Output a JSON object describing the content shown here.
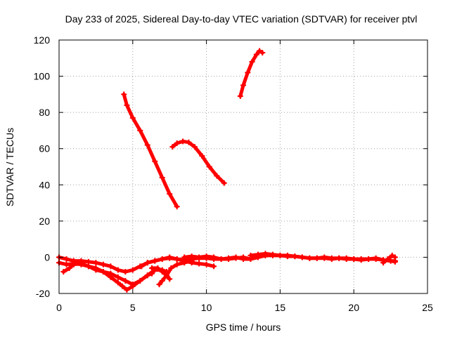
{
  "chart_data": {
    "type": "line",
    "title": "Day 233 of 2025, Sidereal Day-to-day VTEC variation (SDTVAR) for receiver ptvl",
    "xlabel": "GPS time / hours",
    "ylabel": "SDTVAR / TECUs",
    "xlim": [
      0,
      25
    ],
    "ylim": [
      -20,
      120
    ],
    "xticks": [
      0,
      5,
      10,
      15,
      20,
      25
    ],
    "yticks": [
      -20,
      0,
      20,
      40,
      60,
      80,
      100,
      120
    ],
    "grid": true,
    "legend": "none",
    "color": "#ff0000",
    "series": [
      {
        "x": [
          4.4,
          4.6,
          5.0,
          5.5,
          6.0,
          6.5,
          7.0,
          7.5,
          8.0
        ],
        "y": [
          90,
          84,
          77,
          70,
          62,
          53,
          44,
          35,
          28
        ]
      },
      {
        "x": [
          7.7,
          8.0,
          8.4,
          8.8,
          9.2,
          9.7,
          10.2,
          10.7,
          11.2
        ],
        "y": [
          61,
          63,
          64,
          63.5,
          61,
          56,
          50,
          45,
          41
        ]
      },
      {
        "x": [
          12.3,
          12.5,
          12.8,
          13.1,
          13.4,
          13.6,
          13.8
        ],
        "y": [
          89,
          95,
          102,
          108,
          112,
          114,
          113
        ]
      },
      {
        "x": [
          0.0,
          0.5,
          1.0,
          1.5,
          2.0,
          2.5,
          3.0,
          3.5,
          4.0,
          4.5,
          5.0,
          5.5,
          6.0,
          6.5,
          7.0,
          7.5,
          8.0,
          8.5,
          9.0,
          9.5,
          10.0,
          10.5,
          11.0
        ],
        "y": [
          0,
          -1,
          -2,
          -2,
          -2.5,
          -3,
          -4,
          -5,
          -7,
          -8,
          -7,
          -5,
          -3,
          -2,
          -1,
          -0.5,
          -1,
          -1.5,
          -1,
          -0.5,
          -0.5,
          -1,
          -1
        ]
      },
      {
        "x": [
          0.0,
          0.5,
          1.0,
          1.5,
          2.0,
          2.5,
          3.0,
          3.5,
          4.0,
          4.3,
          4.6,
          5.0,
          5.5,
          6.0,
          6.3
        ],
        "y": [
          -3,
          -4,
          -3.5,
          -4,
          -5,
          -6,
          -8,
          -11,
          -14,
          -16,
          -18,
          -16,
          -13,
          -10,
          -9
        ]
      },
      {
        "x": [
          0.3,
          0.7,
          1.0,
          1.5,
          2.0,
          2.5,
          3.0,
          3.5,
          4.0,
          4.5,
          5.0,
          5.5,
          6.0,
          6.5,
          7.0,
          7.3
        ],
        "y": [
          -8,
          -6,
          -4,
          -3.5,
          -5,
          -7,
          -8,
          -9,
          -11,
          -13,
          -15,
          -13,
          -10,
          -7,
          -7,
          -8
        ]
      },
      {
        "x": [
          5.6,
          6.0,
          6.5,
          7.0,
          7.5,
          8.0,
          8.5,
          9.0,
          9.5,
          10.0,
          10.5
        ],
        "y": [
          -5,
          -3,
          -2,
          -1,
          0,
          -1,
          -2,
          -3,
          -3.5,
          -4,
          -5
        ]
      },
      {
        "x": [
          6.8,
          7.0,
          7.3,
          7.6,
          8.0,
          8.5,
          9.0
        ],
        "y": [
          -15,
          -13,
          -10,
          -6,
          -4,
          -3,
          -2
        ]
      },
      {
        "x": [
          6.3,
          6.7,
          7.0,
          7.3,
          7.5
        ],
        "y": [
          -6,
          -6,
          -8,
          -10,
          -12
        ]
      },
      {
        "x": [
          8.5,
          9.0,
          9.5,
          10.0,
          10.5,
          11.0,
          11.5,
          12.0,
          12.5,
          13.0,
          13.5,
          14.0
        ],
        "y": [
          0,
          0.5,
          0,
          0.5,
          0,
          -1,
          -1,
          -0.5,
          0,
          -1,
          0,
          1
        ]
      },
      {
        "x": [
          11.0,
          11.5,
          12.0,
          12.5,
          13.0,
          13.5,
          14.0,
          14.5,
          15.0,
          15.5,
          16.0,
          16.5,
          17.0,
          17.5,
          18.0,
          18.5,
          19.0,
          19.5,
          20.0,
          20.5,
          21.0,
          21.5,
          22.0,
          22.5,
          22.8
        ],
        "y": [
          -1,
          -0.5,
          0,
          -1,
          -1,
          0,
          1,
          1,
          1,
          1,
          0.5,
          0,
          -0.5,
          -0.5,
          0,
          -0.5,
          -0.5,
          -0.5,
          -1,
          -1,
          -1,
          -0.5,
          -1.5,
          -2,
          -2
        ]
      },
      {
        "x": [
          13.0,
          13.5,
          14.0,
          14.5,
          15.0,
          15.5,
          16.0,
          16.5,
          17.0,
          17.5,
          18.0,
          18.5,
          19.0,
          19.5,
          20.0,
          20.5,
          21.0,
          21.5,
          22.0,
          22.5,
          22.8
        ],
        "y": [
          1,
          1.5,
          2,
          1.5,
          1,
          0.5,
          0.5,
          0,
          -0.5,
          -0.5,
          -0.5,
          -1,
          -0.5,
          -1,
          -1,
          -1.5,
          -1,
          -1,
          -1.5,
          -2,
          -2.5
        ]
      },
      {
        "x": [
          22.0,
          22.3,
          22.6,
          22.8
        ],
        "y": [
          -3,
          -1,
          1,
          0
        ]
      }
    ]
  }
}
